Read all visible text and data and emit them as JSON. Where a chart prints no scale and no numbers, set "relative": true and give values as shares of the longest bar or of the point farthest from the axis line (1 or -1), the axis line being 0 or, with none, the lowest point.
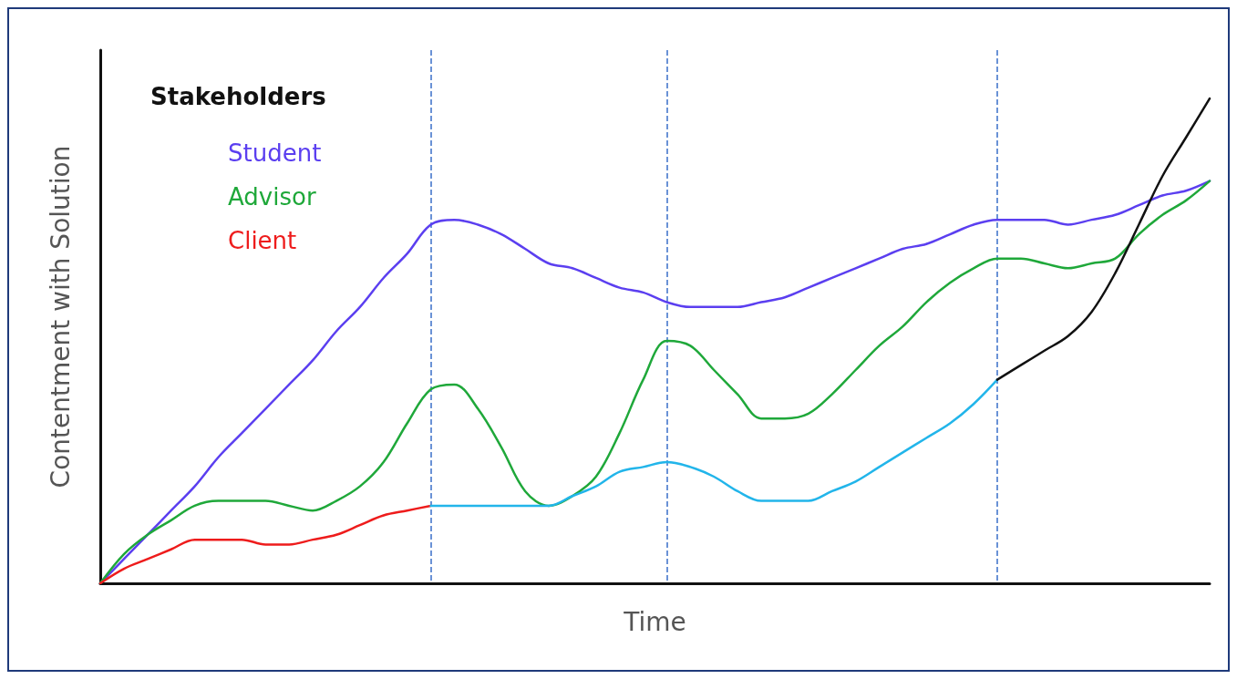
{
  "chart_data": {
    "type": "line",
    "relative": true,
    "xlabel": "Time",
    "ylabel": "Contentment with Solution",
    "legend_title": "Stakeholders",
    "legend": "top left",
    "marker": "none",
    "line_style": "solid",
    "grid": "x",
    "categories": [
      null,
      null,
      null,
      null,
      null,
      null,
      null,
      null,
      null,
      null,
      null,
      null,
      null,
      null,
      null,
      null,
      null,
      null,
      null,
      null,
      null,
      null,
      null,
      null,
      null,
      null,
      null,
      null,
      null,
      null,
      null,
      null,
      null,
      null,
      null,
      null,
      null,
      null,
      null,
      null,
      null,
      null,
      null,
      null,
      null,
      null,
      null,
      null
    ],
    "series": [
      {
        "name": "Student",
        "color": "#5b3ff0",
        "values": [
          0,
          0.05,
          0.1,
          0.15,
          0.2,
          0.26,
          0.31,
          0.36,
          0.41,
          0.46,
          0.52,
          0.57,
          0.63,
          0.68,
          0.74,
          0.75,
          0.74,
          0.72,
          0.69,
          0.66,
          0.65,
          0.63,
          0.61,
          0.6,
          0.58,
          0.57,
          0.57,
          0.57,
          0.58,
          0.59,
          0.61,
          0.63,
          0.65,
          0.67,
          0.69,
          0.7,
          0.72,
          0.74,
          0.75,
          0.75,
          0.75,
          0.74,
          0.75,
          0.76,
          0.78,
          0.8,
          0.81,
          0.83
        ]
      },
      {
        "name": "Advisor",
        "color": "#1fa83a",
        "values": [
          0,
          0.06,
          0.1,
          0.13,
          0.16,
          0.17,
          0.17,
          0.17,
          0.16,
          0.15,
          0.17,
          0.2,
          0.25,
          0.33,
          0.4,
          0.41,
          0.36,
          0.28,
          0.19,
          0.16,
          0.18,
          0.22,
          0.31,
          0.42,
          0.5,
          0.49,
          0.44,
          0.39,
          0.34,
          0.34,
          0.35,
          0.39,
          0.44,
          0.49,
          0.53,
          0.58,
          0.62,
          0.65,
          0.67,
          0.67,
          0.66,
          0.65,
          0.66,
          0.67,
          0.72,
          0.76,
          0.79,
          0.83
        ]
      },
      {
        "name": "Client",
        "color": "#ee1c1c",
        "values": [
          0,
          0.03,
          0.05,
          0.07,
          0.09,
          0.09,
          0.09,
          0.08,
          0.08,
          0.09,
          0.1,
          0.12,
          0.14,
          0.15,
          0.16,
          null,
          null,
          null,
          null,
          null,
          null,
          null,
          null,
          null,
          null,
          null,
          null,
          null,
          null,
          null,
          null,
          null,
          null,
          null,
          null,
          null,
          null,
          null,
          null,
          null,
          null,
          null,
          null,
          null,
          null,
          null,
          null,
          null
        ]
      },
      {
        "color": "#22b5ea",
        "values": [
          null,
          null,
          null,
          null,
          null,
          null,
          null,
          null,
          null,
          null,
          null,
          null,
          null,
          null,
          0.16,
          0.16,
          0.16,
          0.16,
          0.16,
          0.16,
          0.18,
          0.2,
          0.23,
          0.24,
          0.25,
          0.24,
          0.22,
          0.19,
          0.17,
          0.17,
          0.17,
          0.19,
          0.21,
          0.24,
          0.27,
          0.3,
          0.33,
          0.37,
          0.42,
          null,
          null,
          null,
          null,
          null,
          null,
          null,
          null,
          null
        ]
      },
      {
        "color": "#111111",
        "values": [
          null,
          null,
          null,
          null,
          null,
          null,
          null,
          null,
          null,
          null,
          null,
          null,
          null,
          null,
          null,
          null,
          null,
          null,
          null,
          null,
          null,
          null,
          null,
          null,
          null,
          null,
          null,
          null,
          null,
          null,
          null,
          null,
          null,
          null,
          null,
          null,
          null,
          null,
          0.42,
          0.45,
          0.48,
          0.51,
          0.56,
          0.64,
          0.74,
          0.84,
          0.92,
          1
        ]
      }
    ]
  }
}
